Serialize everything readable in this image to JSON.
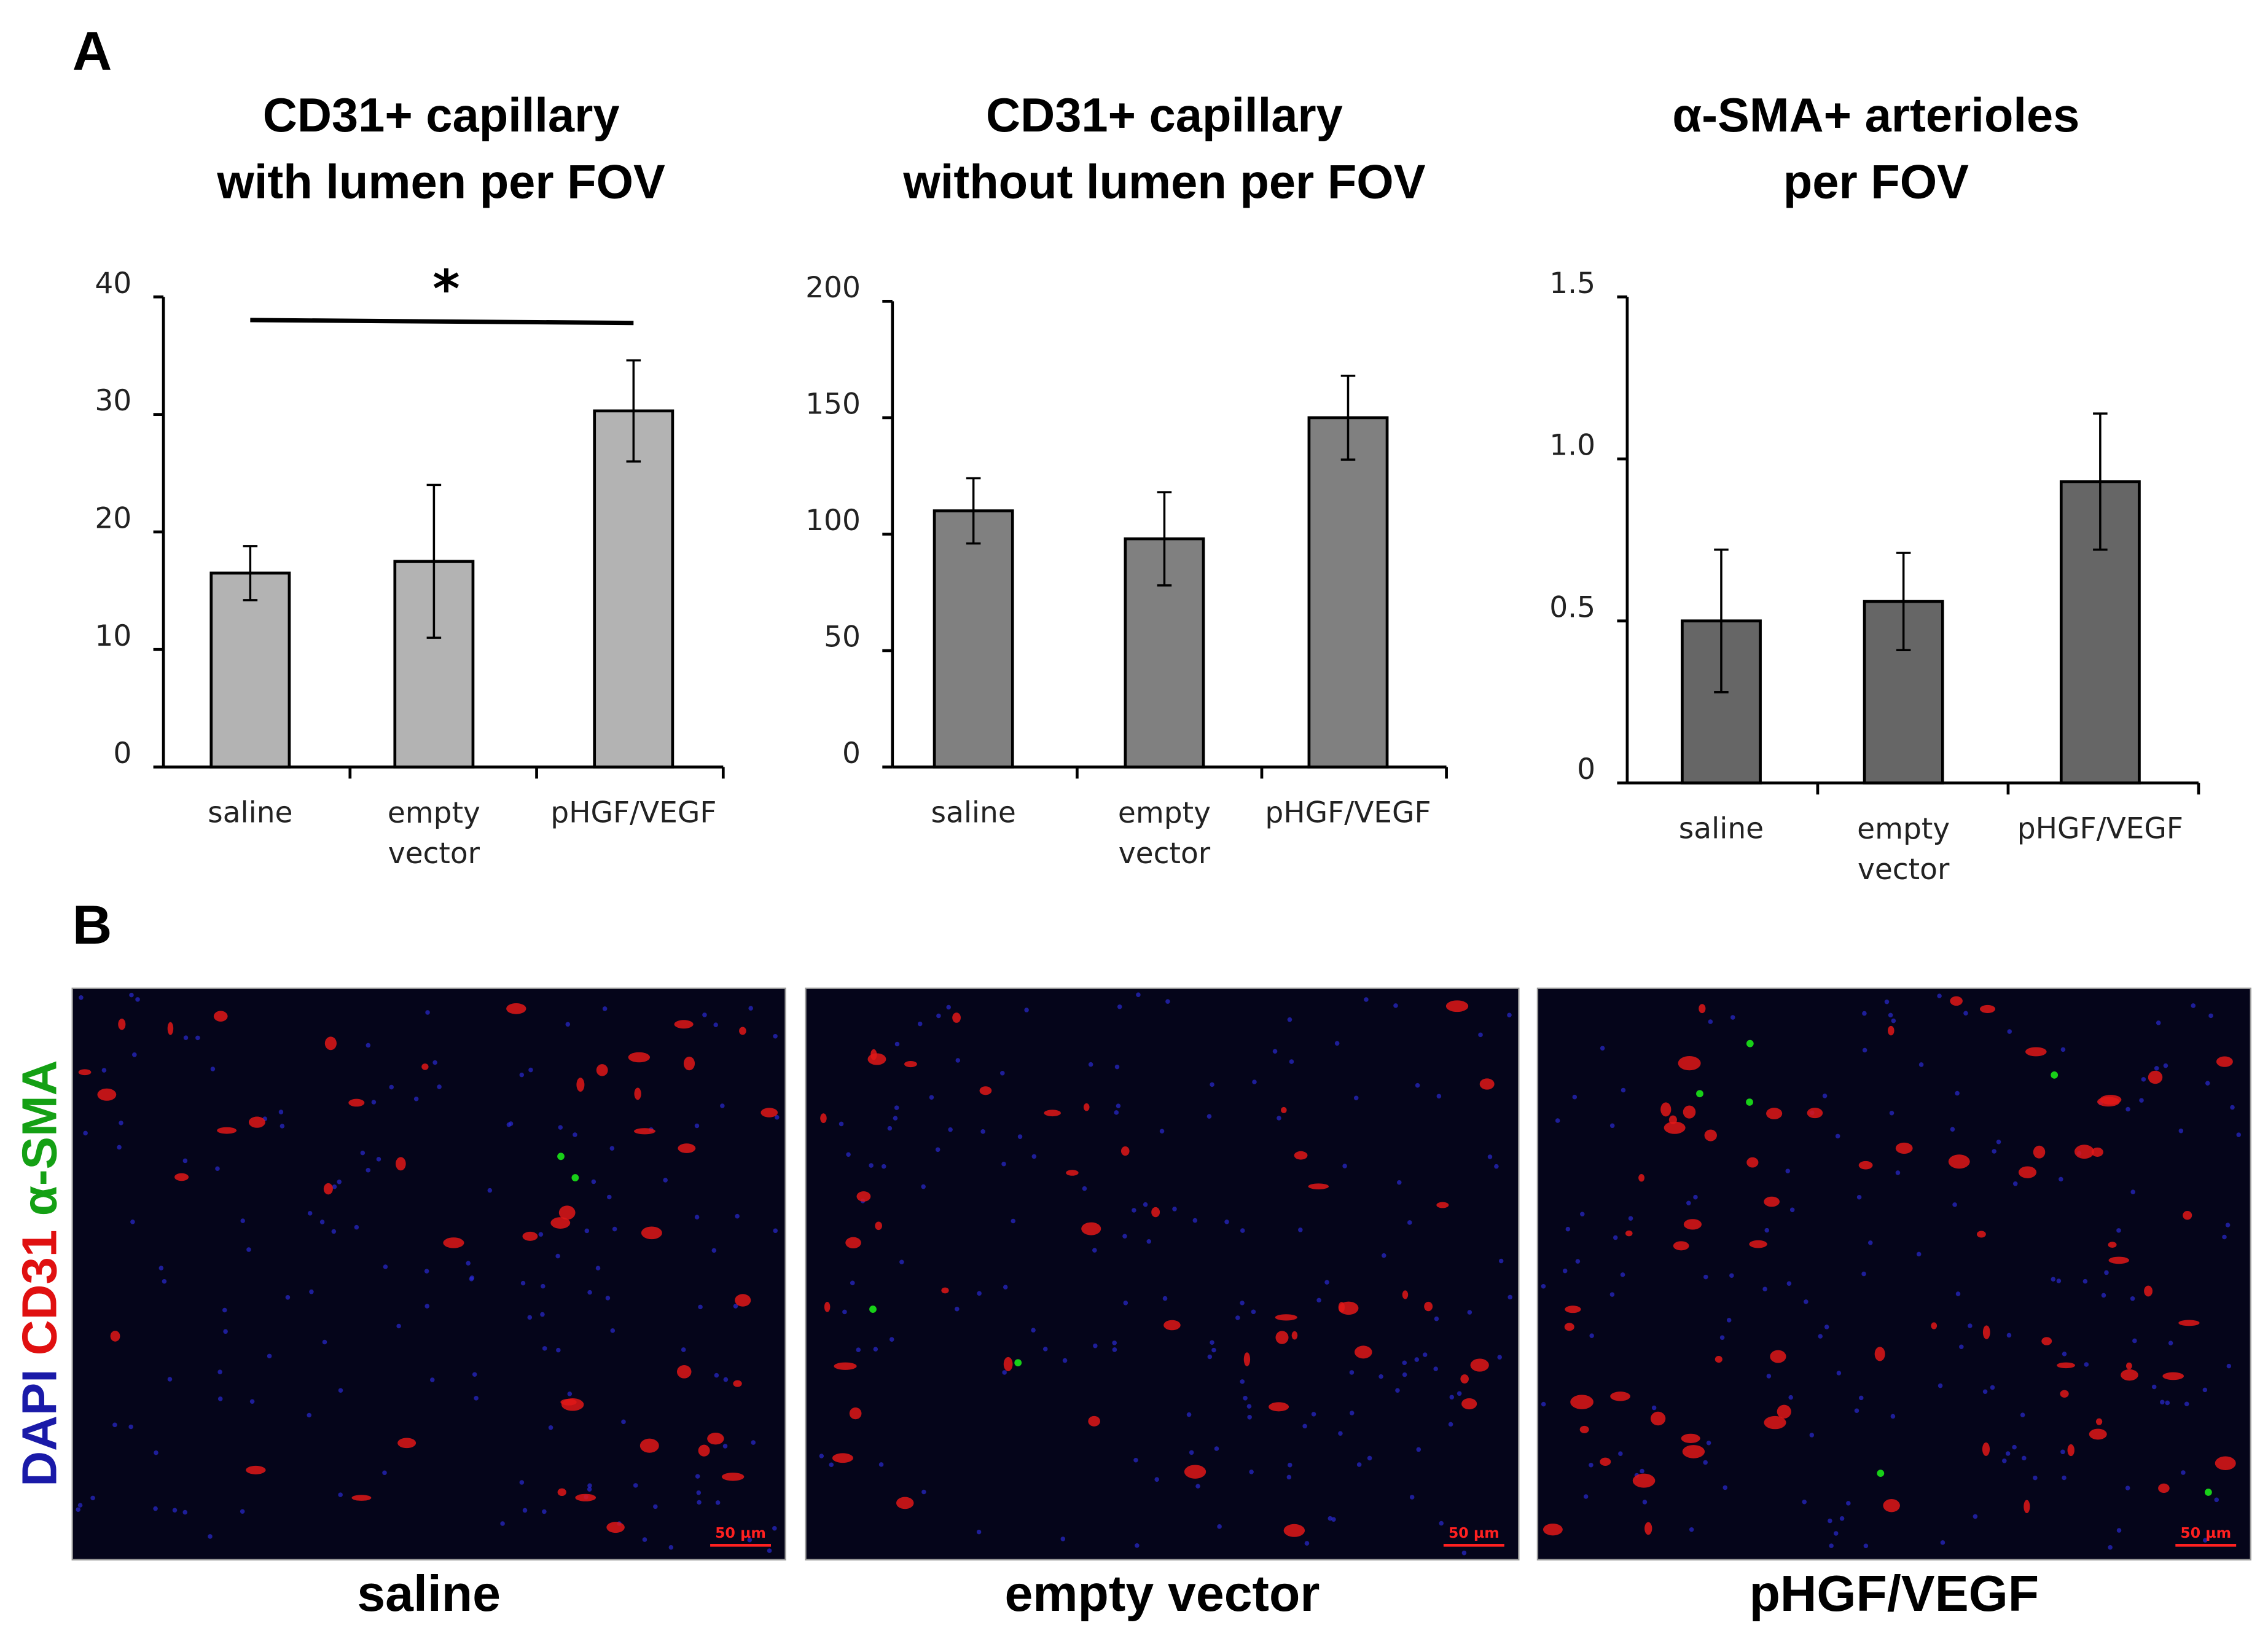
{
  "panel_labels": [
    "A",
    "B"
  ],
  "chart_data": [
    {
      "type": "bar",
      "title": [
        "CD31+ capillary",
        "with lumen per FOV"
      ],
      "categories": [
        "saline",
        "empty vector",
        "pHGF/VEGF"
      ],
      "values": [
        16.5,
        17.5,
        30.3
      ],
      "errors": [
        2.3,
        6.5,
        4.3
      ],
      "color": "#b3b3b3",
      "ylim": [
        0,
        40
      ],
      "yticks": [
        0,
        10,
        20,
        30,
        40
      ],
      "annotation": {
        "text": "*",
        "from": 0,
        "to": 2
      }
    },
    {
      "type": "bar",
      "title": [
        "CD31+ capillary",
        "without lumen per FOV"
      ],
      "categories": [
        "saline",
        "empty vector",
        "pHGF/VEGF"
      ],
      "values": [
        110,
        98,
        150
      ],
      "errors": [
        14,
        20,
        18
      ],
      "color": "#808080",
      "ylim": [
        0,
        200
      ],
      "yticks": [
        0,
        50,
        100,
        150,
        200
      ]
    },
    {
      "type": "bar",
      "title": [
        "α-SMA+ arterioles",
        "per FOV"
      ],
      "categories": [
        "saline",
        "empty vector",
        "pHGF/VEGF"
      ],
      "values": [
        0.5,
        0.56,
        0.93
      ],
      "errors": [
        0.22,
        0.15,
        0.21
      ],
      "color": "#666666",
      "ylim": [
        0,
        1.5
      ],
      "yticks": [
        0,
        0.5,
        {
          "value": 1,
          "label": "1.0"
        },
        1.5
      ]
    }
  ],
  "images": [
    {
      "caption": "saline",
      "scale_bar": "50 µm"
    },
    {
      "caption": "empty vector",
      "scale_bar": "50 µm"
    },
    {
      "caption": "pHGF/VEGF",
      "scale_bar": "50 µm"
    }
  ],
  "stain_label": [
    "DAPI",
    "CD31",
    "α-SMA"
  ]
}
